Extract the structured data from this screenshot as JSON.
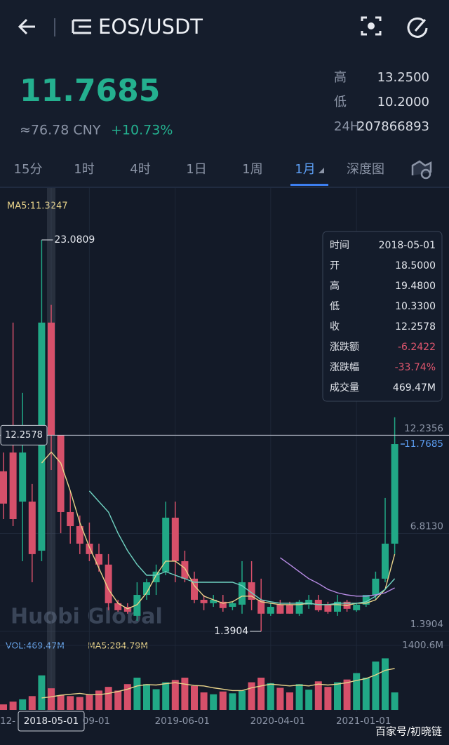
{
  "header": {
    "title": "EOS/USDT"
  },
  "ticker": {
    "price": "11.7685",
    "cny": "≈76.78 CNY",
    "change": "+10.73%",
    "stats": [
      {
        "label": "高",
        "value": "13.2500"
      },
      {
        "label": "低",
        "value": "10.2000"
      },
      {
        "label": "24H",
        "value": "207866893"
      }
    ]
  },
  "tabs": {
    "items": [
      "15分",
      "1时",
      "4时",
      "1日",
      "1周",
      "1月",
      "深度图"
    ],
    "active": "1月"
  },
  "legend": {
    "ma": "MA5:11.3247",
    "vol": "VOL:469.47M",
    "vol_ma": "MA5:284.79M"
  },
  "watermark": "Huobi Global",
  "credit": "百家号/初晓链",
  "tooltip": {
    "rows": [
      {
        "label": "时间",
        "value": "2018-05-01"
      },
      {
        "label": "开",
        "value": "18.5000"
      },
      {
        "label": "高",
        "value": "19.4800"
      },
      {
        "label": "低",
        "value": "10.3300"
      },
      {
        "label": "收",
        "value": "12.2578"
      },
      {
        "label": "涨跌额",
        "value": "-6.2422"
      },
      {
        "label": "涨跌幅",
        "value": "-33.74%"
      },
      {
        "label": "成交量",
        "value": "469.47M"
      }
    ]
  },
  "chart_data": {
    "type": "candlestick",
    "categories": [
      "12-",
      null,
      null,
      null,
      null,
      "2018-05-01",
      null,
      null,
      null,
      "09-01",
      null,
      null,
      null,
      null,
      null,
      null,
      null,
      null,
      "2019-06-01",
      null,
      null,
      null,
      null,
      null,
      null,
      null,
      null,
      null,
      "2020-04-01",
      null,
      null,
      null,
      null,
      null,
      null,
      null,
      null,
      "2021-01-01",
      null,
      null,
      null,
      null
    ],
    "highlight": 5,
    "open": [
      10.26,
      11.3,
      8.58,
      8.58,
      5.86,
      18.5,
      12.26,
      8.0,
      7.22,
      6.25,
      5.67,
      5.09,
      2.95,
      2.75,
      2.25,
      3.41,
      4.11,
      4.7,
      7.69,
      5.28,
      4.31,
      3.14,
      2.95,
      3.03,
      2.75,
      2.87,
      4.11,
      3.14,
      2.37,
      2.87,
      2.87,
      2.37,
      2.87,
      3.14,
      2.87,
      2.48,
      3.03,
      2.56,
      2.87,
      3.41,
      4.31,
      6.25
    ],
    "high": [
      11.3,
      18.5,
      14.61,
      9.56,
      23.0809,
      19.48,
      12.26,
      9.17,
      7.81,
      7.42,
      6.25,
      5.67,
      3.14,
      2.95,
      4.11,
      4.31,
      5.09,
      8.58,
      8.58,
      5.86,
      4.7,
      3.41,
      3.41,
      3.41,
      3.03,
      5.28,
      5.28,
      4.31,
      2.95,
      3.14,
      3.03,
      3.14,
      3.41,
      3.41,
      3.03,
      3.41,
      3.14,
      2.95,
      3.41,
      4.7,
      8.78,
      13.25
    ],
    "low": [
      7.61,
      7.22,
      5.28,
      4.11,
      5.28,
      10.33,
      6.83,
      6.25,
      5.67,
      5.28,
      4.7,
      2.56,
      2.48,
      2.37,
      1.98,
      3.14,
      3.41,
      4.5,
      4.11,
      4.11,
      2.95,
      2.56,
      2.75,
      2.48,
      2.56,
      2.37,
      2.56,
      1.3904,
      2.25,
      2.37,
      2.37,
      2.25,
      2.64,
      2.48,
      2.37,
      2.25,
      2.48,
      2.48,
      2.75,
      3.14,
      4.11,
      5.67
    ],
    "close": [
      8.47,
      7.61,
      11.3,
      5.67,
      18.5,
      12.2578,
      8.0,
      7.22,
      6.25,
      5.67,
      5.09,
      2.95,
      2.56,
      2.48,
      3.41,
      4.11,
      4.7,
      7.69,
      5.28,
      4.31,
      3.14,
      2.95,
      3.14,
      2.68,
      2.95,
      4.11,
      3.14,
      2.37,
      2.75,
      2.37,
      2.37,
      3.03,
      3.14,
      2.56,
      2.48,
      3.03,
      2.64,
      2.87,
      3.41,
      4.31,
      6.25,
      11.7685
    ],
    "volume": [
      120,
      180,
      230,
      300,
      750,
      469.47,
      320,
      300,
      280,
      330,
      420,
      500,
      420,
      560,
      700,
      560,
      450,
      600,
      650,
      700,
      520,
      380,
      340,
      400,
      360,
      420,
      600,
      700,
      580,
      480,
      380,
      560,
      440,
      620,
      500,
      600,
      660,
      800,
      700,
      1050,
      1120,
      380
    ],
    "lines": [
      {
        "color": "#e8d38a",
        "values": [
          null,
          null,
          null,
          null,
          10.72,
          11.3247,
          10.72,
          9.17,
          7.42,
          6.06,
          4.89,
          3.72,
          2.95,
          2.64,
          2.87,
          3.53,
          4.5,
          5.28,
          5.28,
          4.89,
          3.92,
          3.34,
          3.14,
          2.95,
          3.03,
          3.34,
          3.34,
          3.03,
          2.95,
          2.87,
          2.87,
          2.87,
          2.95,
          2.87,
          2.87,
          2.87,
          2.83,
          2.95,
          2.95,
          3.14,
          3.72,
          5.67
        ]
      },
      {
        "color": "#6fd3c2",
        "values": [
          null,
          null,
          null,
          null,
          null,
          null,
          null,
          null,
          null,
          9.17,
          8.58,
          8.0,
          6.83,
          5.86,
          5.09,
          4.5,
          4.5,
          4.7,
          4.5,
          4.31,
          4.11,
          4.11,
          4.11,
          4.11,
          4.11,
          3.92,
          3.53,
          3.14,
          3.03,
          2.95,
          2.95,
          2.95,
          2.95,
          2.87,
          2.87,
          2.95,
          2.95,
          2.95,
          3.03,
          3.34,
          3.72,
          4.31
        ]
      },
      {
        "color": "#b98ce6",
        "values": [
          null,
          null,
          null,
          null,
          null,
          null,
          null,
          null,
          null,
          null,
          null,
          null,
          null,
          null,
          null,
          null,
          null,
          null,
          null,
          null,
          null,
          null,
          null,
          null,
          null,
          null,
          null,
          null,
          null,
          5.47,
          5.09,
          4.7,
          4.31,
          4.04,
          3.72,
          3.53,
          3.41,
          3.34,
          3.34,
          3.41,
          3.53,
          3.8
        ]
      }
    ],
    "vol_lines": [
      {
        "color": "#e8d38a",
        "values": [
          null,
          null,
          null,
          null,
          260,
          284.79,
          320,
          340,
          360,
          330,
          330,
          360,
          400,
          450,
          520,
          550,
          540,
          570,
          590,
          560,
          530,
          520,
          480,
          450,
          420,
          420,
          480,
          520,
          560,
          540,
          520,
          540,
          520,
          560,
          540,
          560,
          590,
          640,
          680,
          760,
          860,
          900
        ]
      }
    ],
    "up_color": "#21a886",
    "down_color": "#d6506a",
    "ylim": [
      1.3904,
      23.0809
    ],
    "yticks": [
      1.3904,
      {
        "value": 6.813,
        "label": "6.8130"
      },
      12.2356
    ],
    "vol_ylim": [
      0,
      1400.6
    ],
    "vol_ticks": [
      {
        "value": 1400.6,
        "label": "1400.6M"
      }
    ],
    "high_marker": 4,
    "low_marker": 27,
    "crosshair": 5,
    "last": 41
  }
}
